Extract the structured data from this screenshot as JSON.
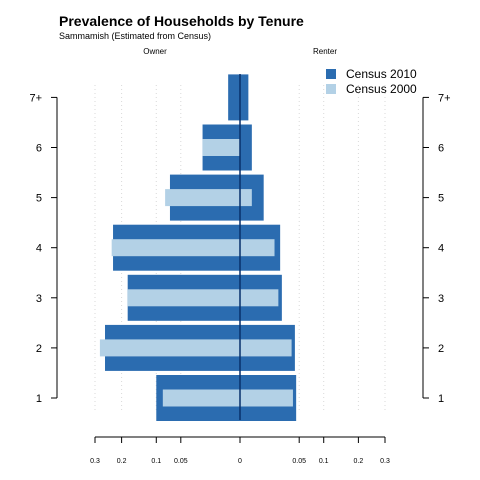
{
  "chart_data": {
    "type": "bar",
    "orientation": "horizontal-population-pyramid",
    "title": "Prevalence of Households by Tenure",
    "subtitle": "Sammamish (Estimated from Census)",
    "left_label": "Owner",
    "right_label": "Renter",
    "categories": [
      "1",
      "2",
      "3",
      "4",
      "5",
      "6",
      "7+"
    ],
    "series": [
      {
        "name": "Census 2010",
        "color": "#2b6cb0",
        "owner": [
          0.1,
          0.26,
          0.18,
          0.23,
          0.07,
          0.02,
          0.002
        ],
        "renter": [
          0.045,
          0.043,
          0.025,
          0.023,
          0.008,
          0.002,
          0.001
        ]
      },
      {
        "name": "Census 2000",
        "color": "#b3d1e6",
        "owner": [
          0.085,
          0.28,
          0.18,
          0.235,
          0.08,
          0.02,
          0.0
        ],
        "renter": [
          0.04,
          0.038,
          0.021,
          0.017,
          0.002,
          0.0,
          0.0
        ]
      }
    ],
    "x_axis": {
      "scale": "sqrt",
      "ticks": [
        0.3,
        0.2,
        0.1,
        0.05,
        0,
        0.05,
        0.1,
        0.2,
        0.3
      ],
      "tick_values": [
        -0.3,
        -0.2,
        -0.1,
        -0.05,
        0,
        0.05,
        0.1,
        0.2,
        0.3
      ],
      "xlim": [
        -0.3,
        0.3
      ]
    },
    "y_axis": {
      "ticks": [
        "1",
        "2",
        "3",
        "4",
        "5",
        "6",
        "7+"
      ]
    },
    "grid": true,
    "legend_position": "top-right"
  }
}
